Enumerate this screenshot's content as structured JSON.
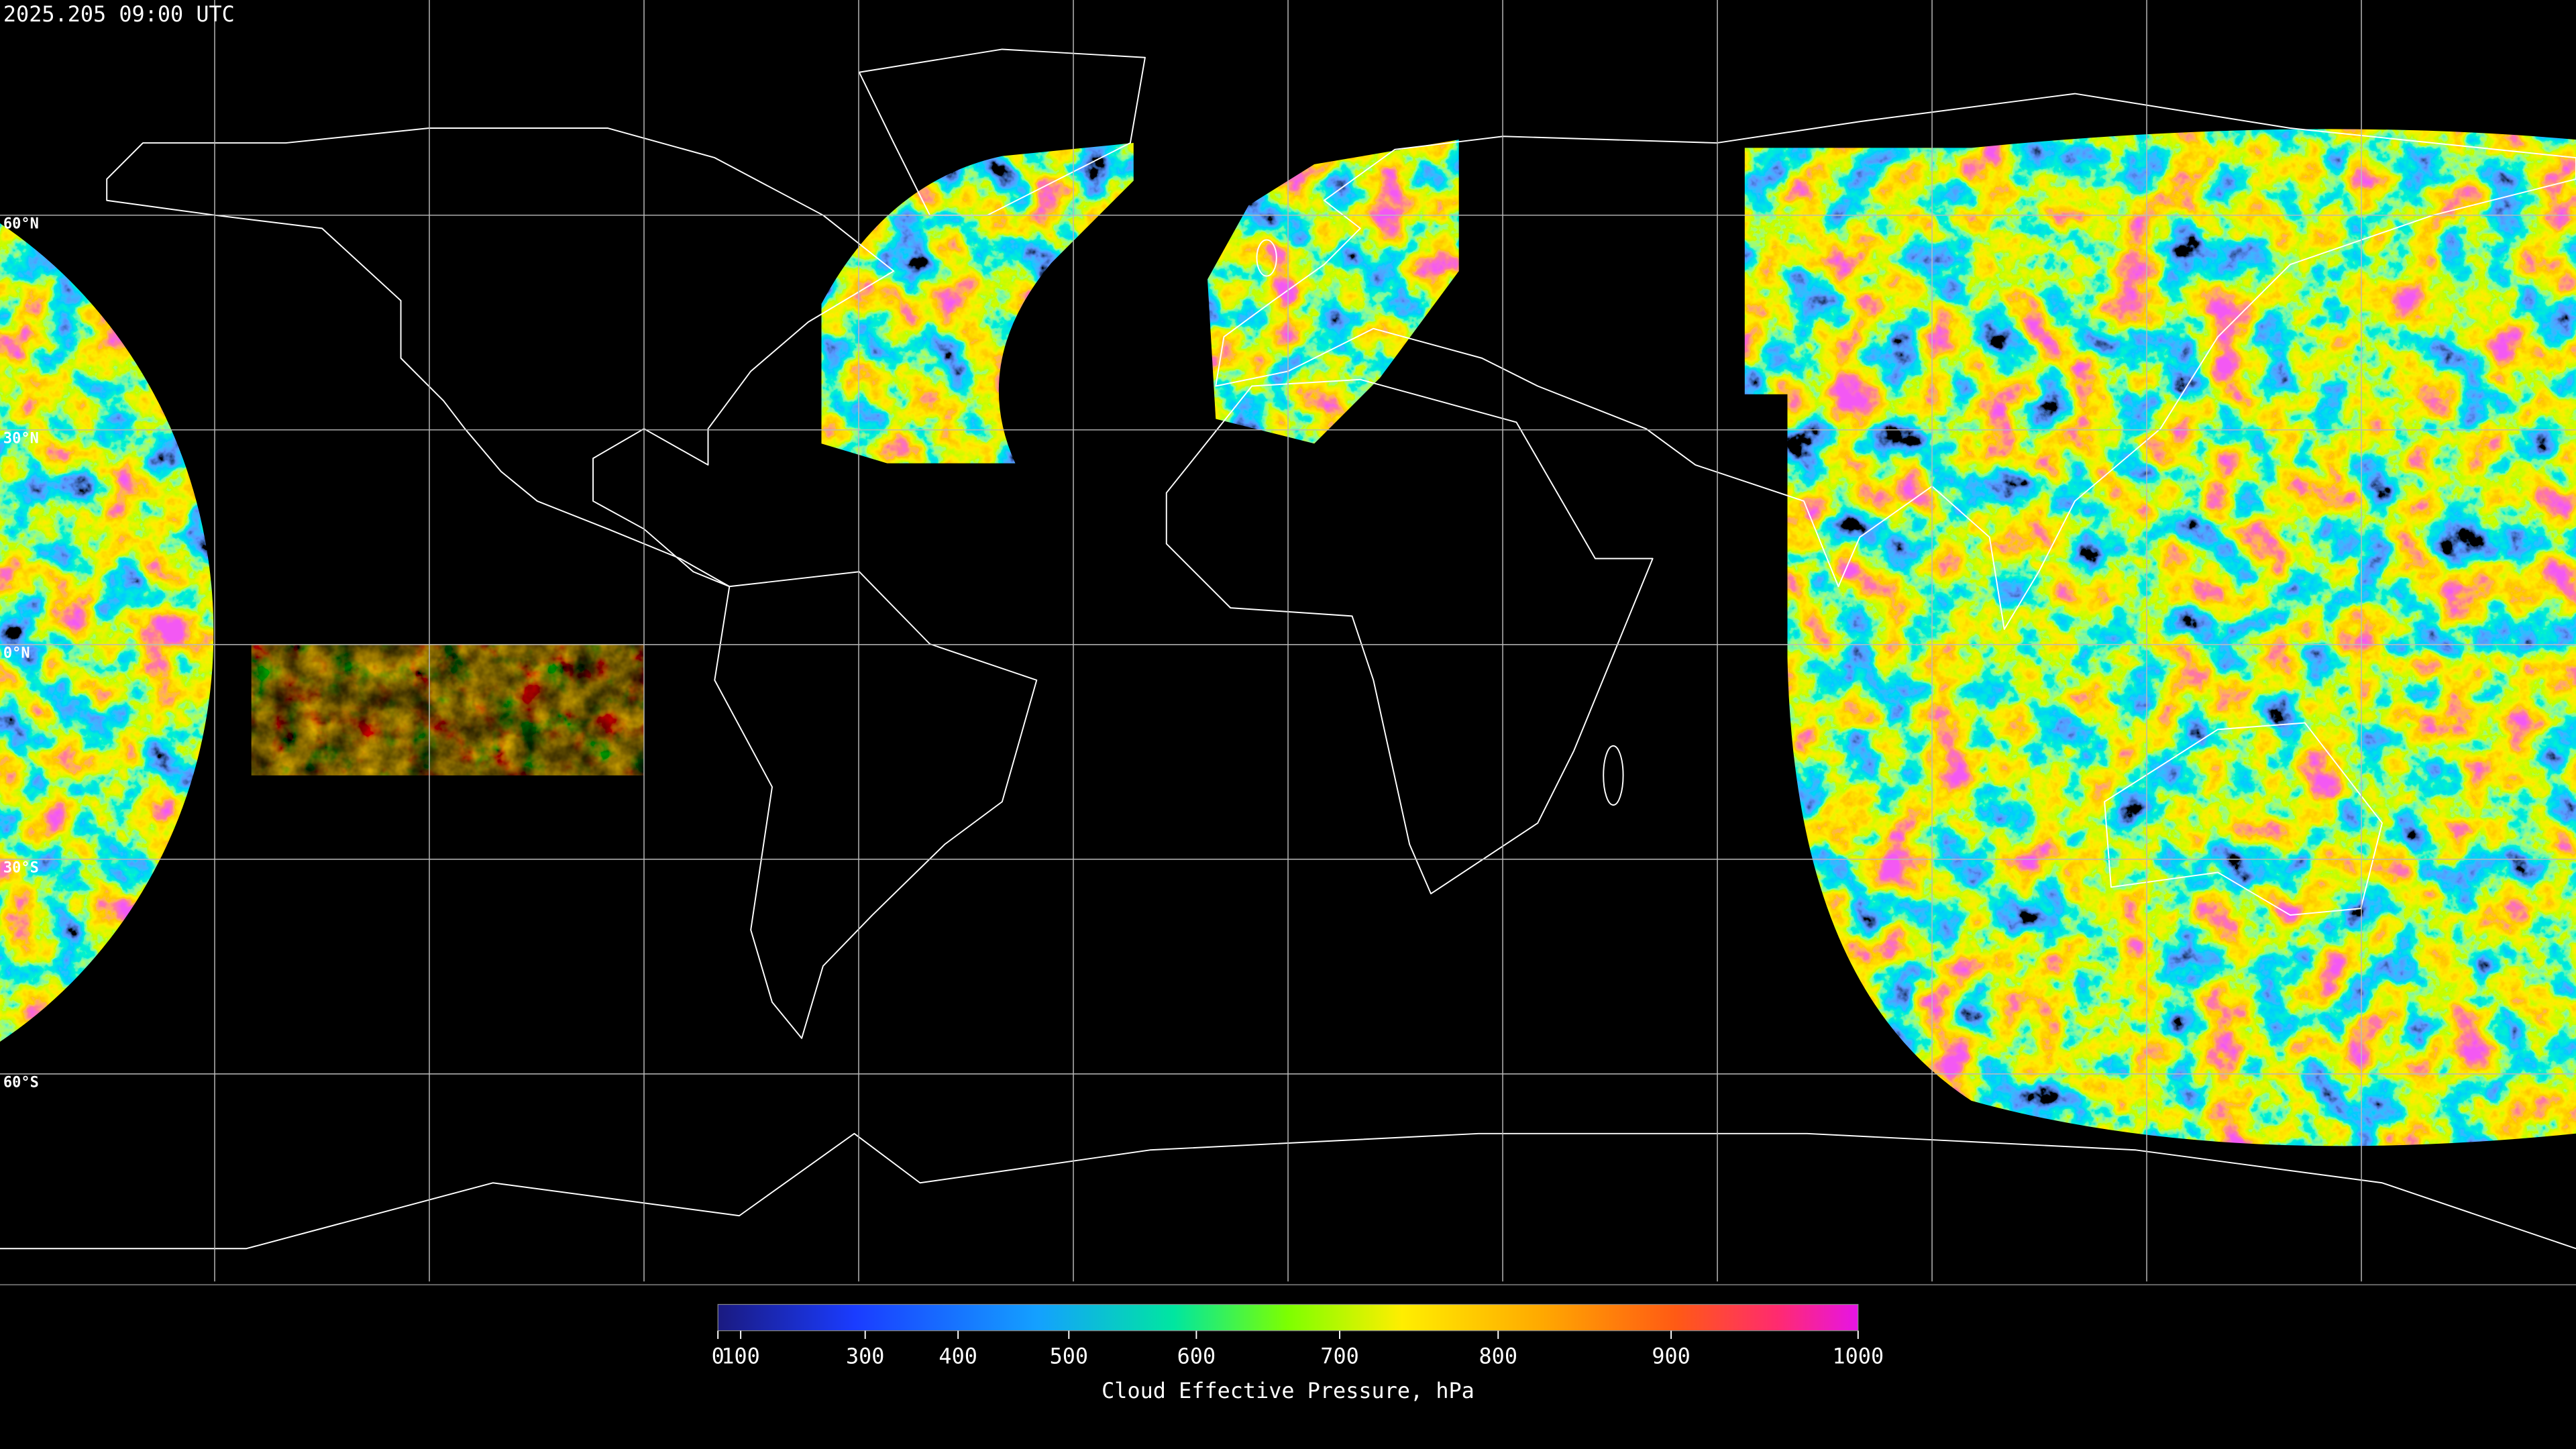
{
  "timestamp": "2025.205 09:00 UTC",
  "lat_labels": [
    "60°N",
    "30°N",
    "0°N",
    "30°S",
    "60°S"
  ],
  "colorbar": {
    "label": "Cloud Effective Pressure, hPa",
    "range": [
      0,
      1000
    ],
    "ticks": [
      0,
      100,
      300,
      400,
      500,
      600,
      700,
      800,
      900,
      1000
    ]
  }
}
